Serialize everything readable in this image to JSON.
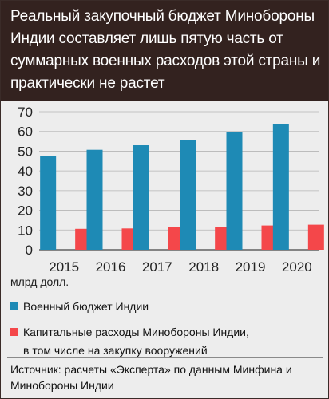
{
  "title": "Реальный закупочный бюджет Минобороны Индии составляет лишь пятую часть от суммарных военных расходов этой страны и практически не растет",
  "unit_label": "млрд долл.",
  "legend": {
    "series_1": "Военный бюджет Индии",
    "series_2_line1": "Капитальные расходы Минобороны Индии,",
    "series_2_line2": "в том числе на закупку вооружений"
  },
  "source": "Источник: расчеты «Эксперта» по данным Минфина и Минобороны Индии",
  "colors": {
    "title_bg": "#33221f",
    "series_1": "#1e8ab5",
    "series_2": "#f4474a"
  },
  "chart_data": {
    "type": "bar",
    "categories": [
      "2015",
      "2016",
      "2017",
      "2018",
      "2019",
      "2020"
    ],
    "series": [
      {
        "name": "Военный бюджет Индии",
        "values": [
          47.5,
          50.7,
          53,
          55.8,
          59.5,
          63.8
        ]
      },
      {
        "name": "Капитальные расходы Минобороны Индии, в том числе на закупку вооружений",
        "values": [
          10.6,
          10.8,
          11.4,
          11.7,
          12.3,
          12.7
        ]
      }
    ],
    "yticks": [
      0,
      10,
      20,
      30,
      40,
      50,
      60,
      70
    ],
    "ylim": [
      0,
      70
    ],
    "grid": true,
    "legend_position": "bottom"
  }
}
